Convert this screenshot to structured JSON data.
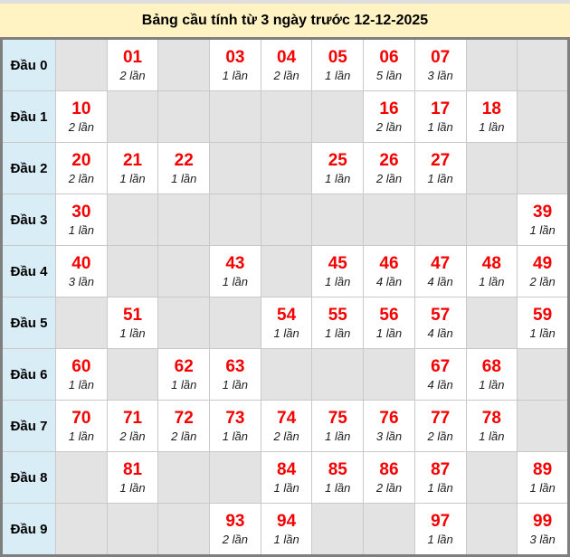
{
  "title": "Bảng cầu tính từ 3 ngày trước 12-12-2025",
  "colors": {
    "title_bg": "#fff2c3",
    "label_bg": "#d9edf7",
    "empty_cell_bg": "#e3e3e3",
    "filled_cell_bg": "#ffffff",
    "number_text": "#f50000",
    "count_text": "#1c1c1c",
    "outer_border": "#7f7f7f",
    "inner_border": "#c9c9c9",
    "top_strip": "#dedede"
  },
  "table": {
    "rows": [
      {
        "label": "Đầu 0",
        "cells": [
          null,
          {
            "number": "01",
            "count": "2 lần"
          },
          null,
          {
            "number": "03",
            "count": "1 lần"
          },
          {
            "number": "04",
            "count": "2 lần"
          },
          {
            "number": "05",
            "count": "1 lần"
          },
          {
            "number": "06",
            "count": "5 lần"
          },
          {
            "number": "07",
            "count": "3 lần"
          },
          null,
          null
        ]
      },
      {
        "label": "Đầu 1",
        "cells": [
          {
            "number": "10",
            "count": "2 lần"
          },
          null,
          null,
          null,
          null,
          null,
          {
            "number": "16",
            "count": "2 lần"
          },
          {
            "number": "17",
            "count": "1 lần"
          },
          {
            "number": "18",
            "count": "1 lần"
          },
          null
        ]
      },
      {
        "label": "Đầu 2",
        "cells": [
          {
            "number": "20",
            "count": "2 lần"
          },
          {
            "number": "21",
            "count": "1 lần"
          },
          {
            "number": "22",
            "count": "1 lần"
          },
          null,
          null,
          {
            "number": "25",
            "count": "1 lần"
          },
          {
            "number": "26",
            "count": "2 lần"
          },
          {
            "number": "27",
            "count": "1 lần"
          },
          null,
          null
        ]
      },
      {
        "label": "Đầu 3",
        "cells": [
          {
            "number": "30",
            "count": "1 lần"
          },
          null,
          null,
          null,
          null,
          null,
          null,
          null,
          null,
          {
            "number": "39",
            "count": "1 lần"
          }
        ]
      },
      {
        "label": "Đầu 4",
        "cells": [
          {
            "number": "40",
            "count": "3 lần"
          },
          null,
          null,
          {
            "number": "43",
            "count": "1 lần"
          },
          null,
          {
            "number": "45",
            "count": "1 lần"
          },
          {
            "number": "46",
            "count": "4 lần"
          },
          {
            "number": "47",
            "count": "4 lần"
          },
          {
            "number": "48",
            "count": "1 lần"
          },
          {
            "number": "49",
            "count": "2 lần"
          }
        ]
      },
      {
        "label": "Đầu 5",
        "cells": [
          null,
          {
            "number": "51",
            "count": "1 lần"
          },
          null,
          null,
          {
            "number": "54",
            "count": "1 lần"
          },
          {
            "number": "55",
            "count": "1 lần"
          },
          {
            "number": "56",
            "count": "1 lần"
          },
          {
            "number": "57",
            "count": "4 lần"
          },
          null,
          {
            "number": "59",
            "count": "1 lần"
          }
        ]
      },
      {
        "label": "Đầu 6",
        "cells": [
          {
            "number": "60",
            "count": "1 lần"
          },
          null,
          {
            "number": "62",
            "count": "1 lần"
          },
          {
            "number": "63",
            "count": "1 lần"
          },
          null,
          null,
          null,
          {
            "number": "67",
            "count": "4 lần"
          },
          {
            "number": "68",
            "count": "1 lần"
          },
          null
        ]
      },
      {
        "label": "Đầu 7",
        "cells": [
          {
            "number": "70",
            "count": "1 lần"
          },
          {
            "number": "71",
            "count": "2 lần"
          },
          {
            "number": "72",
            "count": "2 lần"
          },
          {
            "number": "73",
            "count": "1 lần"
          },
          {
            "number": "74",
            "count": "2 lần"
          },
          {
            "number": "75",
            "count": "1 lần"
          },
          {
            "number": "76",
            "count": "3 lần"
          },
          {
            "number": "77",
            "count": "2 lần"
          },
          {
            "number": "78",
            "count": "1 lần"
          },
          null
        ]
      },
      {
        "label": "Đầu 8",
        "cells": [
          null,
          {
            "number": "81",
            "count": "1 lần"
          },
          null,
          null,
          {
            "number": "84",
            "count": "1 lần"
          },
          {
            "number": "85",
            "count": "1 lần"
          },
          {
            "number": "86",
            "count": "2 lần"
          },
          {
            "number": "87",
            "count": "1 lần"
          },
          null,
          {
            "number": "89",
            "count": "1 lần"
          }
        ]
      },
      {
        "label": "Đầu 9",
        "cells": [
          null,
          null,
          null,
          {
            "number": "93",
            "count": "2 lần"
          },
          {
            "number": "94",
            "count": "1 lần"
          },
          null,
          null,
          {
            "number": "97",
            "count": "1 lần"
          },
          null,
          {
            "number": "99",
            "count": "3 lần"
          }
        ]
      }
    ]
  }
}
